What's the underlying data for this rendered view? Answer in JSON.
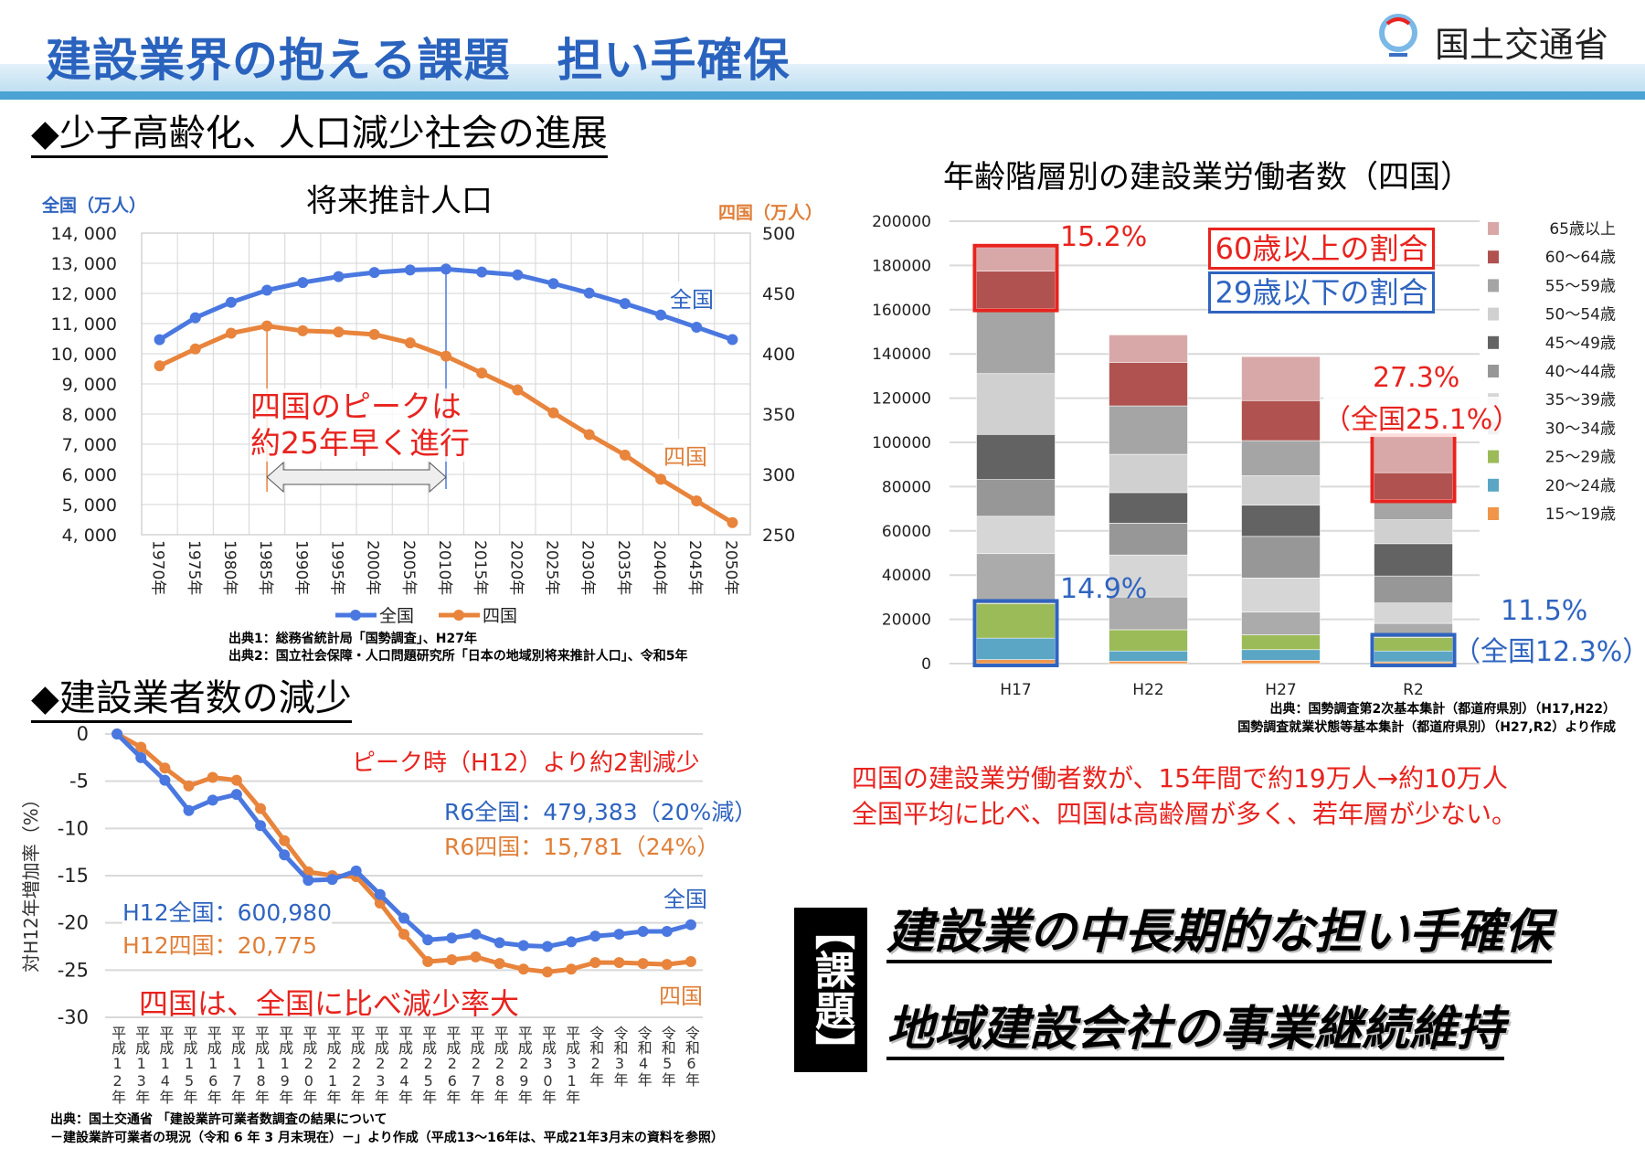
{
  "header": {
    "title": "建設業界の抱える課題　担い手確保",
    "logo_text": "国土交通省"
  },
  "section1": {
    "heading": "◆少子高齢化、人口減少社会の進展"
  },
  "section2": {
    "heading": "◆建設業者数の減少"
  },
  "population": {
    "left_unit": "全国（万人）",
    "right_unit": "四国（万人）",
    "annotation_line1": "四国のピークは",
    "annotation_line2": "約25年早く進行",
    "label_zenkoku": "全国",
    "label_shikoku": "四国",
    "source1": "出典1：総務省統計局「国勢調査」、H27年",
    "source2": "出典2：国立社会保障・人口問題研究所「日本の地域別将来推計人口」、令和5年"
  },
  "firms": {
    "peak_note": "ピーク時（H12）より約2割減少",
    "r6_zenkoku": "R6全国：479,383（20%減）",
    "r6_shikoku": "R6四国：15,781（24%）",
    "h12_zenkoku": "H12全国：600,980",
    "h12_shikoku": "H12四国：20,775",
    "conclusion": "四国は、全国に比べ減少率大",
    "label_zenkoku": "全国",
    "label_shikoku": "四国",
    "source1": "出典：国土交通省 「建設業許可業者数調査の結果について",
    "source2": "－建設業許可業者の現況（令和 6 年 3 月末現在）－」より作成（平成13～16年は、平成21年3月末の資料を参照）"
  },
  "workers": {
    "box_60": "60歳以上の割合",
    "box_29": "29歳以下の割合",
    "h17_60": "15.2%",
    "h17_29": "14.9%",
    "r2_60": "27.3%",
    "r2_60_national": "（全国25.1%）",
    "r2_29": "11.5%",
    "r2_29_national": "（全国12.3%）",
    "source1": "出典：国勢調査第2次基本集計（都道府県別）（H17,H22）",
    "source2": "国勢調査就業状態等基本集計（都道府県別）（H27,R2）より作成",
    "summary1": "四国の建設業労働者数が、15年間で約19万人→約10万人",
    "summary2": "全国平均に比べ、四国は高齢層が多く、若年層が少ない。"
  },
  "kadai": {
    "label": "【課題】",
    "item1": "建設業の中長期的な担い手確保",
    "item2": "地域建設会社の事業継続維持"
  },
  "chart_data": [
    {
      "type": "line",
      "title": "将来推計人口",
      "categories": [
        "1970年",
        "1975年",
        "1980年",
        "1985年",
        "1990年",
        "1995年",
        "2000年",
        "2005年",
        "2010年",
        "2015年",
        "2020年",
        "2025年",
        "2030年",
        "2035年",
        "2040年",
        "2045年",
        "2050年"
      ],
      "series": [
        {
          "name": "全国",
          "axis": "left",
          "color": "#4a78e0",
          "values": [
            10467,
            11194,
            11706,
            12105,
            12361,
            12557,
            12693,
            12777,
            12806,
            12709,
            12615,
            12326,
            12012,
            11664,
            11284,
            10880,
            10469
          ]
        },
        {
          "name": "四国",
          "axis": "right",
          "color": "#e8843c",
          "values": [
            390,
            404,
            417,
            423,
            419,
            418,
            416,
            409,
            398,
            384,
            370,
            351,
            333,
            316,
            296,
            278,
            260
          ]
        }
      ],
      "ylim_left": [
        4000,
        14000
      ],
      "yticks_left": [
        "14, 000",
        "13, 000",
        "12, 000",
        "11, 000",
        "10, 000",
        "9, 000",
        "8, 000",
        "7, 000",
        "6, 000",
        "5, 000",
        "4, 000"
      ],
      "ylim_right": [
        250,
        500
      ],
      "yticks_right": [
        "500",
        "450",
        "400",
        "350",
        "300",
        "250"
      ],
      "grid": true,
      "legend": "bottom",
      "peak_markers": [
        "1985年",
        "2010年"
      ]
    },
    {
      "type": "line",
      "ylabel": "対H12年増加率（%）",
      "categories": [
        "平成12年",
        "平成13年",
        "平成14年",
        "平成15年",
        "平成16年",
        "平成17年",
        "平成18年",
        "平成19年",
        "平成20年",
        "平成21年",
        "平成22年",
        "平成23年",
        "平成24年",
        "平成25年",
        "平成26年",
        "平成27年",
        "平成28年",
        "平成29年",
        "平成30年",
        "平成31年",
        "令和2年",
        "令和3年",
        "令和4年",
        "令和5年",
        "令和6年"
      ],
      "series": [
        {
          "name": "全国",
          "color": "#4a78e0",
          "values": [
            0,
            -2.5,
            -4.9,
            -8.1,
            -7.0,
            -6.4,
            -9.7,
            -12.8,
            -15.5,
            -15.4,
            -14.5,
            -17.0,
            -19.5,
            -21.8,
            -21.6,
            -21.2,
            -22.1,
            -22.4,
            -22.5,
            -22.0,
            -21.4,
            -21.2,
            -20.9,
            -20.9,
            -20.2
          ]
        },
        {
          "name": "四国",
          "color": "#e8843c",
          "values": [
            0,
            -1.4,
            -3.6,
            -5.5,
            -4.6,
            -4.9,
            -7.9,
            -11.3,
            -14.6,
            -15.0,
            -15.1,
            -17.9,
            -21.2,
            -24.1,
            -23.9,
            -23.6,
            -24.3,
            -24.9,
            -25.2,
            -24.9,
            -24.2,
            -24.2,
            -24.3,
            -24.4,
            -24.1
          ]
        }
      ],
      "ylim": [
        -30,
        0
      ],
      "yticks": [
        "0",
        "-5",
        "-10",
        "-15",
        "-20",
        "-25",
        "-30"
      ],
      "grid": true
    },
    {
      "type": "bar",
      "stacked": true,
      "title": "年齢階層別の建設業労働者数（四国）",
      "categories": [
        "H17",
        "H22",
        "H27",
        "R2"
      ],
      "ylim": [
        0,
        200000
      ],
      "yticks": [
        "200000",
        "180000",
        "160000",
        "140000",
        "120000",
        "100000",
        "80000",
        "60000",
        "40000",
        "20000",
        "0"
      ],
      "legend": "right",
      "series": [
        {
          "name": "15～19歳",
          "color": "#f0964a",
          "label_color": "#3e6fd6",
          "values": [
            1800,
            1100,
            1500,
            800
          ]
        },
        {
          "name": "20～24歳",
          "color": "#5ba6c5",
          "label_color": "#3e6fd6",
          "values": [
            9700,
            4600,
            4800,
            4900
          ]
        },
        {
          "name": "25～29歳",
          "color": "#9bbb59",
          "label_color": "#3e6fd6",
          "values": [
            15600,
            9600,
            6700,
            6100
          ]
        },
        {
          "name": "30～34歳",
          "color": "#ababab",
          "label_color": "#333333",
          "values": [
            22600,
            14800,
            10300,
            6400
          ]
        },
        {
          "name": "35～39歳",
          "color": "#d6d6d6",
          "label_color": "#333333",
          "values": [
            16900,
            19000,
            15400,
            9200
          ]
        },
        {
          "name": "40～44歳",
          "color": "#979797",
          "label_color": "#333333",
          "values": [
            16600,
            14400,
            18800,
            12200
          ]
        },
        {
          "name": "45～49歳",
          "color": "#636363",
          "label_color": "#333333",
          "values": [
            20400,
            13800,
            14100,
            14600
          ]
        },
        {
          "name": "50～54歳",
          "color": "#d0d0d0",
          "label_color": "#333333",
          "values": [
            27500,
            17300,
            13300,
            10800
          ]
        },
        {
          "name": "55～59歳",
          "color": "#a5a5a5",
          "label_color": "#333333",
          "values": [
            29400,
            21900,
            15900,
            9200
          ]
        },
        {
          "name": "60～64歳",
          "color": "#b0524f",
          "label_color": "#e8231e",
          "values": [
            16900,
            19700,
            18100,
            12100
          ]
        },
        {
          "name": "65歳以上",
          "color": "#d8a8a8",
          "label_color": "#e8231e",
          "values": [
            10700,
            12400,
            19900,
            16100
          ]
        }
      ]
    }
  ]
}
